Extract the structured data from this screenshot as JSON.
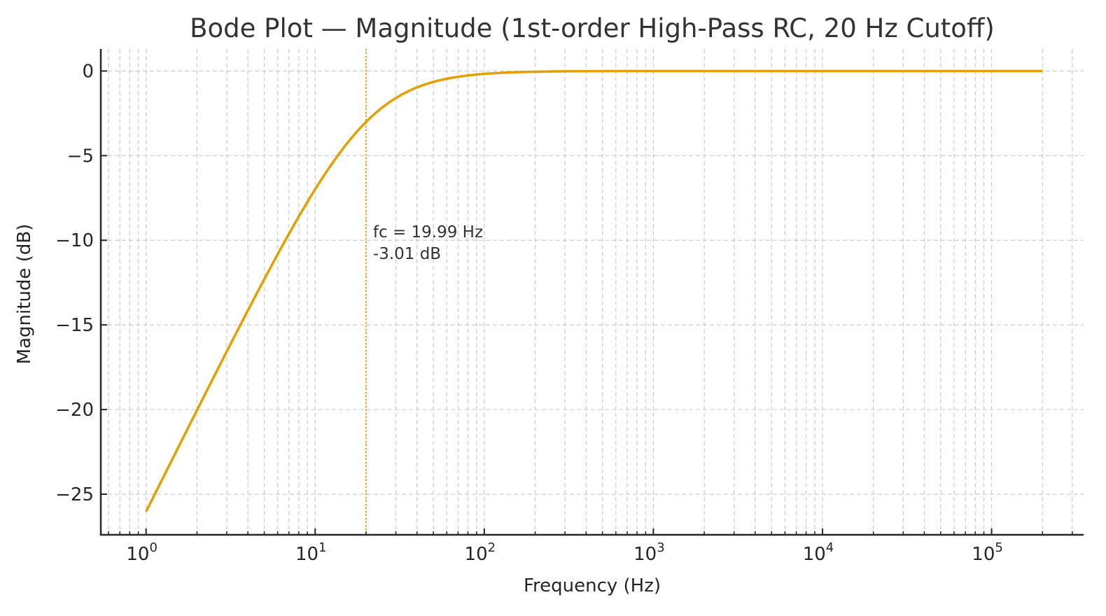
{
  "chart_data": {
    "type": "line",
    "title": "Bode Plot — Magnitude (1st-order High-Pass RC, 20 Hz Cutoff)",
    "xlabel": "Frequency (Hz)",
    "ylabel": "Magnitude (dB)",
    "xscale": "log",
    "xlim": [
      0.54,
      350000
    ],
    "ylim": [
      -27.4,
      1.3
    ],
    "x_ticks": [
      {
        "value": 1,
        "base": "10",
        "exp": "0"
      },
      {
        "value": 10,
        "base": "10",
        "exp": "1"
      },
      {
        "value": 100,
        "base": "10",
        "exp": "2"
      },
      {
        "value": 1000,
        "base": "10",
        "exp": "3"
      },
      {
        "value": 10000,
        "base": "10",
        "exp": "4"
      },
      {
        "value": 100000,
        "base": "10",
        "exp": "5"
      }
    ],
    "y_ticks": [
      {
        "value": 0,
        "label": "0"
      },
      {
        "value": -5,
        "label": "−5"
      },
      {
        "value": -10,
        "label": "−10"
      },
      {
        "value": -15,
        "label": "−15"
      },
      {
        "value": -20,
        "label": "−20"
      },
      {
        "value": -25,
        "label": "−25"
      }
    ],
    "grid": true,
    "grid_style": "dashed, major and minor",
    "series": [
      {
        "name": "Magnitude",
        "color": "#E69F00",
        "x_range": [
          1,
          200000
        ],
        "cutoff_hz": 19.99,
        "x": [
          1,
          2,
          3,
          5,
          7,
          10,
          15,
          20,
          30,
          50,
          70,
          100,
          200,
          500,
          1000,
          10000,
          100000,
          200000
        ],
        "values": [
          -26.0,
          -20.0,
          -16.6,
          -12.3,
          -9.5,
          -6.99,
          -4.44,
          -3.01,
          -1.6,
          -0.64,
          -0.33,
          -0.17,
          -0.04,
          -0.007,
          -0.002,
          0.0,
          0.0,
          0.0
        ]
      }
    ],
    "annotations": [
      {
        "type": "vline",
        "x": 19.99,
        "style": "dotted",
        "color": "#E69F00"
      },
      {
        "type": "text",
        "x": 19.99,
        "y": -10,
        "lines": [
          "fc = 19.99 Hz",
          "-3.01 dB"
        ]
      }
    ]
  },
  "colors": {
    "series": "#E69F00",
    "axis": "#262626",
    "grid": "#cccccc",
    "title": "#333333"
  }
}
